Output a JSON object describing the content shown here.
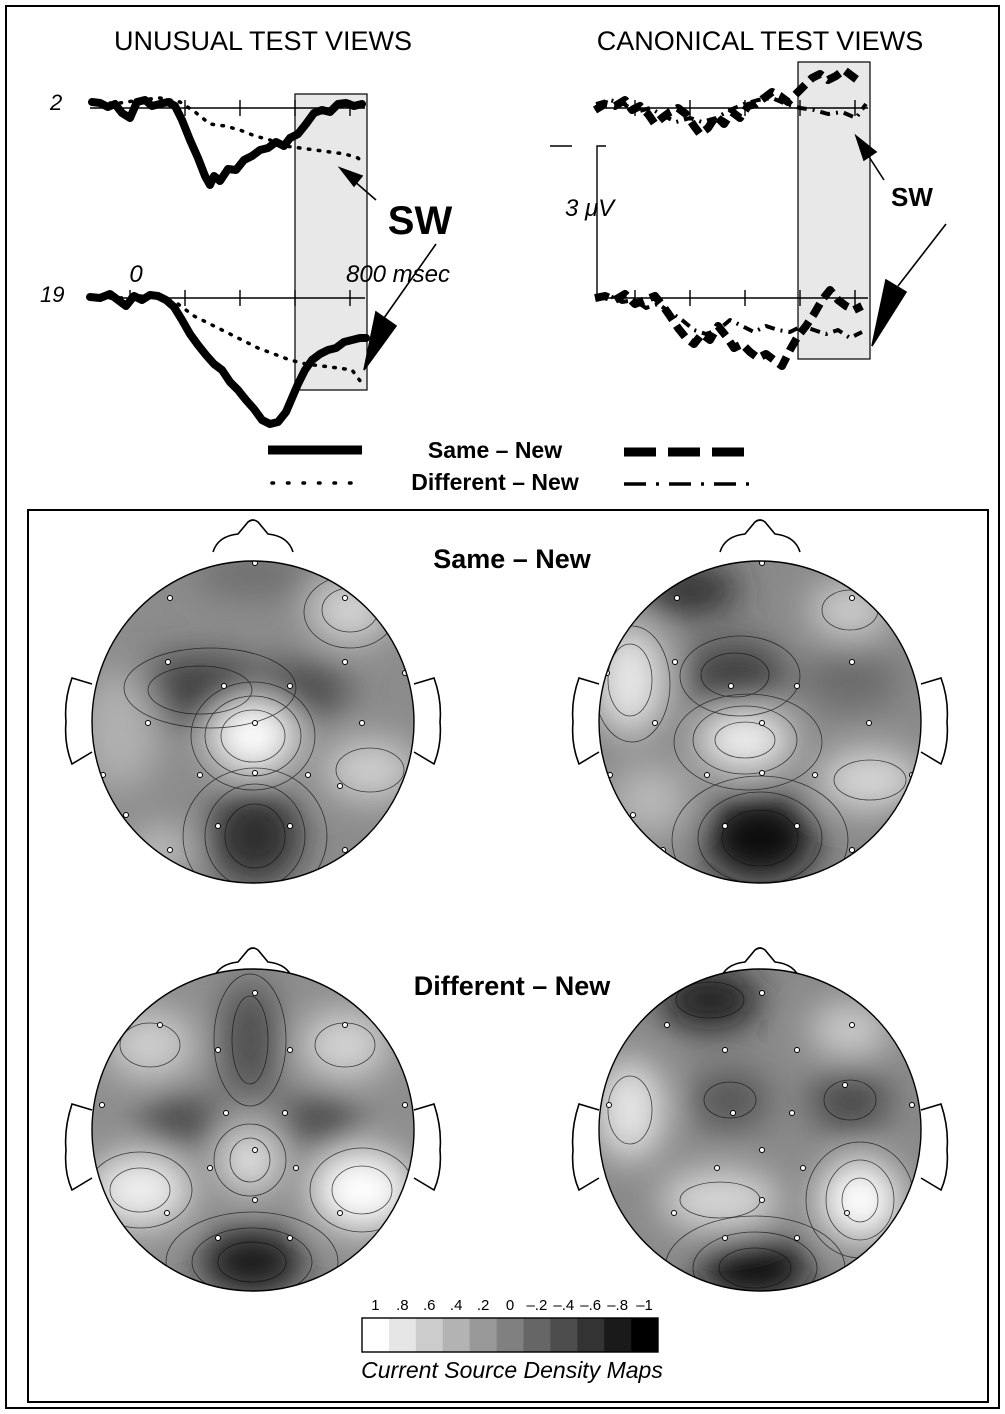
{
  "erp": {
    "unusual_title": "UNUSUAL TEST VIEWS",
    "canonical_title": "CANONICAL TEST VIEWS",
    "electrode_top": "2",
    "electrode_bottom": "19",
    "time_start": "0",
    "time_end": "800 msec",
    "sw_large": "SW",
    "sw_small": "SW",
    "scale": "3 μV"
  },
  "legend": {
    "same_new": "Same – New",
    "different_new": "Different – New"
  },
  "maps": {
    "same_title": "Same – New",
    "different_title": "Different – New",
    "colorbar_ticks": [
      "1",
      ".8",
      ".6",
      ".4",
      ".2",
      "0",
      "–.2",
      "–.4",
      "–.6",
      "–.8",
      "–1"
    ],
    "colorbar_shades": [
      "#ffffff",
      "#e6e6e6",
      "#cccccc",
      "#b3b3b3",
      "#999999",
      "#808080",
      "#666666",
      "#4d4d4d",
      "#333333",
      "#1a1a1a",
      "#000000"
    ],
    "colorbar_caption": "Current Source Density Maps"
  }
}
